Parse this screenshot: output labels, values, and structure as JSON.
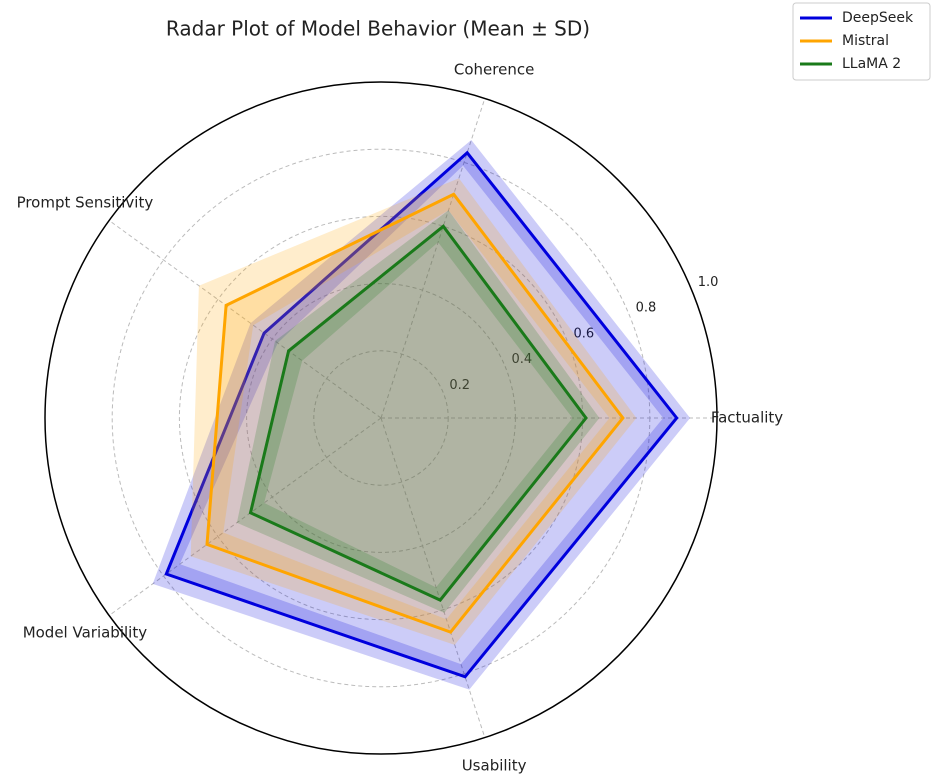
{
  "chart_data": {
    "type": "radar",
    "title": "Radar Plot of Model Behavior (Mean ± SD)",
    "categories": [
      "Factuality",
      "Coherence",
      "Prompt Sensitivity",
      "Model Variability",
      "Usability"
    ],
    "series": [
      {
        "name": "DeepSeek",
        "color": "#0000dd",
        "values": [
          0.88,
          0.83,
          0.43,
          0.79,
          0.81
        ],
        "sd": [
          0.04,
          0.04,
          0.05,
          0.05,
          0.04
        ]
      },
      {
        "name": "Mistral",
        "color": "#ffa500",
        "values": [
          0.72,
          0.7,
          0.57,
          0.64,
          0.67
        ],
        "sd": [
          0.04,
          0.05,
          0.1,
          0.06,
          0.04
        ]
      },
      {
        "name": "LLaMA 2",
        "color": "#1a7a1a",
        "values": [
          0.61,
          0.6,
          0.34,
          0.48,
          0.57
        ],
        "sd": [
          0.04,
          0.05,
          0.05,
          0.05,
          0.04
        ]
      }
    ],
    "rlim": [
      0,
      1
    ],
    "rticks": [
      0.2,
      0.4,
      0.6,
      0.8,
      {
        "value": 1,
        "label": "1.0"
      }
    ],
    "grid": true,
    "legend": "upper right"
  }
}
